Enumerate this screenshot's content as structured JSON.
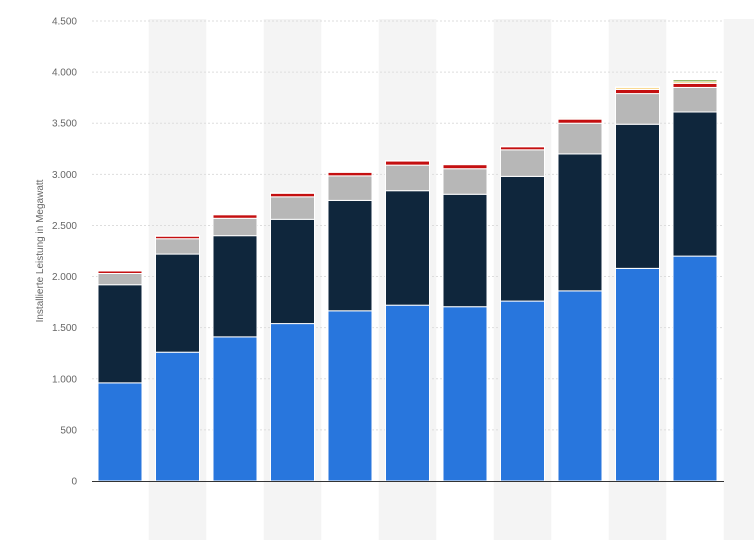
{
  "chart_data": {
    "type": "bar",
    "stacked": true,
    "title": "",
    "xlabel": "",
    "ylabel": "Installierte Leistung in Megawatt",
    "ylim": [
      0,
      4500
    ],
    "yticks": [
      0,
      500,
      1000,
      1500,
      2000,
      2500,
      3000,
      3500,
      4000,
      4500
    ],
    "ytick_labels": [
      "0",
      "500",
      "1.000",
      "1.500",
      "2.000",
      "2.500",
      "3.000",
      "3.500",
      "4.000",
      "4.500"
    ],
    "grid": "horizontal dotted",
    "alternating_column_background": true,
    "categories": [
      "",
      "",
      "",
      "",
      "",
      "",
      "",
      "",
      "",
      "",
      "",
      ""
    ],
    "series": [
      {
        "color": "#2876dd",
        "values": [
          960,
          1260,
          1410,
          1540,
          1665,
          1720,
          1705,
          1760,
          1860,
          2080,
          2200,
          0
        ]
      },
      {
        "color": "#0f263c",
        "values": [
          960,
          960,
          990,
          1020,
          1080,
          1120,
          1100,
          1220,
          1340,
          1410,
          1410,
          0
        ]
      },
      {
        "color": "#b7b7b7",
        "values": [
          110,
          150,
          170,
          220,
          240,
          250,
          250,
          260,
          300,
          300,
          240,
          0
        ]
      },
      {
        "color": "#c40f10",
        "values": [
          25,
          25,
          35,
          35,
          35,
          40,
          40,
          30,
          40,
          40,
          40,
          0
        ]
      },
      {
        "color": "#f6b426",
        "values": [
          5,
          5,
          5,
          5,
          5,
          5,
          5,
          5,
          10,
          15,
          15,
          0
        ]
      },
      {
        "color": "#6f9b2b",
        "values": [
          0,
          0,
          0,
          0,
          0,
          0,
          0,
          0,
          10,
          10,
          20,
          0
        ]
      }
    ],
    "colors": {
      "grid": "#dddddd",
      "axis": "#333333",
      "band": "#f4f4f4"
    }
  }
}
